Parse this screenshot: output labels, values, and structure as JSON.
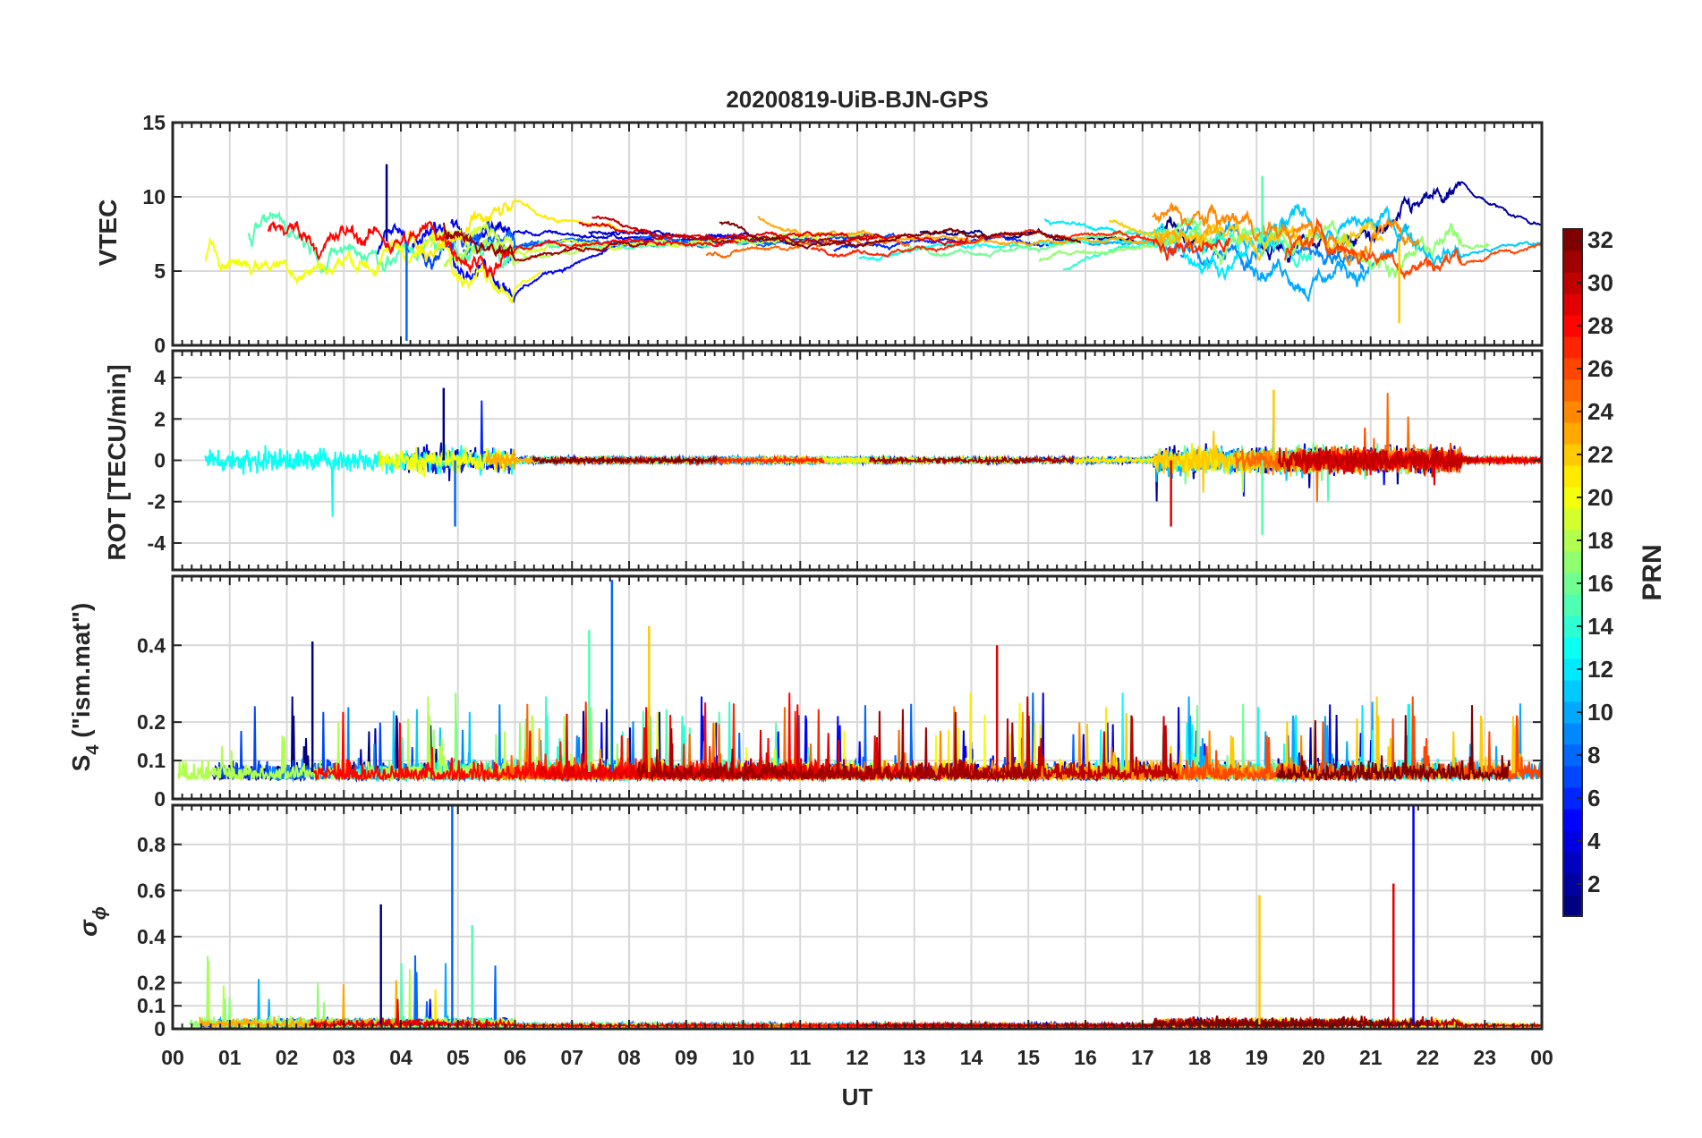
{
  "figure": {
    "title": "20200819-UiB-BJN-GPS",
    "xlabel": "UT",
    "x_ticks": [
      "00",
      "01",
      "02",
      "03",
      "04",
      "05",
      "06",
      "07",
      "08",
      "09",
      "10",
      "11",
      "12",
      "13",
      "14",
      "15",
      "16",
      "17",
      "18",
      "19",
      "20",
      "21",
      "22",
      "23",
      "00"
    ]
  },
  "colorbar": {
    "label": "PRN",
    "range": [
      1,
      32
    ],
    "ticks": [
      "2",
      "4",
      "6",
      "8",
      "10",
      "12",
      "14",
      "16",
      "18",
      "20",
      "22",
      "24",
      "26",
      "28",
      "30",
      "32"
    ],
    "colormap": "jet"
  },
  "chart_data": [
    {
      "type": "line",
      "panel": "VTEC",
      "ylabel": "VTEC",
      "ylim": [
        0,
        15
      ],
      "yticks": [
        "0",
        "5",
        "10",
        "15"
      ],
      "x_unit": "hours UT",
      "xlim": [
        0,
        24
      ],
      "grid": true,
      "series_count": 32,
      "typical_range": [
        4,
        11
      ],
      "events": [
        {
          "x": 3.75,
          "y": 12.2,
          "note": "spike"
        },
        {
          "x": 4.1,
          "y": 0.3,
          "note": "dip"
        },
        {
          "x": 19.1,
          "y": 11.4,
          "note": "peak"
        },
        {
          "x": 21.5,
          "y": 1.5,
          "note": "dip"
        }
      ]
    },
    {
      "type": "line",
      "panel": "ROT",
      "ylabel": "ROT [TECU/min]",
      "ylim": [
        -5.3,
        5.3
      ],
      "yticks": [
        "-4",
        "-2",
        "0",
        "2",
        "4"
      ],
      "xlim": [
        0,
        24
      ],
      "grid": true,
      "active_periods": [
        [
          0,
          6
        ],
        [
          17.3,
          22.5
        ]
      ],
      "events": [
        {
          "x": 4.75,
          "y": 3.5
        },
        {
          "x": 4.95,
          "y": -3.2
        },
        {
          "x": 19.1,
          "y": -3.6
        },
        {
          "x": 19.3,
          "y": 3.4
        },
        {
          "x": 17.5,
          "y": -3.2
        }
      ]
    },
    {
      "type": "line",
      "panel": "S4",
      "ylabel_main": "S",
      "ylabel_sub": "4",
      "ylabel_rest": " (\"ism.mat\")",
      "ylim": [
        0,
        0.58
      ],
      "yticks": [
        "0",
        "0.1",
        "0.2",
        "0.4"
      ],
      "xlim": [
        0,
        24
      ],
      "grid": true,
      "baseline": 0.06,
      "events": [
        {
          "x": 2.45,
          "y": 0.41
        },
        {
          "x": 7.7,
          "y": 0.57
        },
        {
          "x": 7.3,
          "y": 0.44
        },
        {
          "x": 8.35,
          "y": 0.45
        },
        {
          "x": 14.45,
          "y": 0.4
        }
      ]
    },
    {
      "type": "line",
      "panel": "sigma_phi",
      "ylabel_main": "σ",
      "ylabel_sub": "ϕ",
      "ylim": [
        0,
        0.97
      ],
      "yticks": [
        "0",
        "0.1",
        "0.2",
        "0.4",
        "0.6",
        "0.8"
      ],
      "xlim": [
        0,
        24
      ],
      "grid": true,
      "events": [
        {
          "x": 3.65,
          "y": 0.54
        },
        {
          "x": 4.9,
          "y": 0.98
        },
        {
          "x": 5.25,
          "y": 0.45
        },
        {
          "x": 19.05,
          "y": 0.58
        },
        {
          "x": 21.4,
          "y": 0.63
        },
        {
          "x": 21.75,
          "y": 0.97
        }
      ]
    }
  ]
}
